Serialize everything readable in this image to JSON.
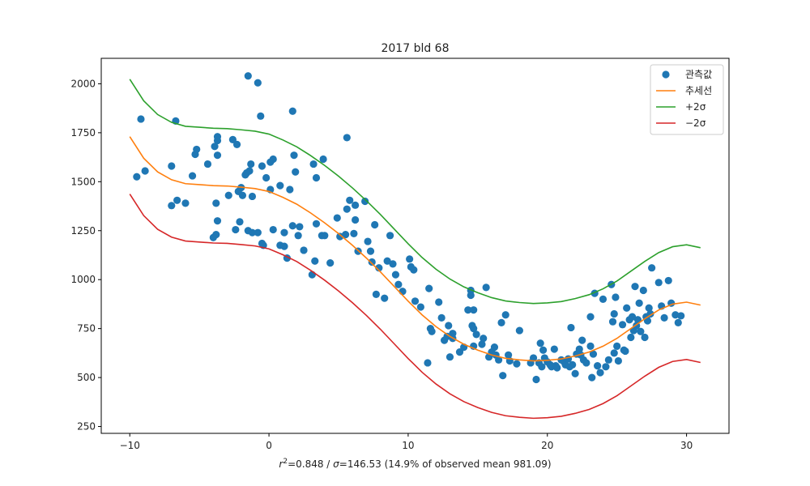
{
  "chart_data": {
    "type": "scatter",
    "title": "2017 bld 68",
    "xlabel_parts": {
      "r": "r",
      "sup": "2",
      "rest1": "=0.848 / ",
      "sigma": "σ",
      "rest2": "=146.53 (14.9% of observed mean 981.09)"
    },
    "ylabel": "",
    "xlim": [
      -12.05,
      33.05
    ],
    "ylim": [
      215,
      2130
    ],
    "xticks": [
      -10,
      0,
      10,
      20,
      30
    ],
    "xtick_labels": [
      "−10",
      "0",
      "10",
      "20",
      "30"
    ],
    "yticks": [
      250,
      500,
      750,
      1000,
      1250,
      1500,
      1750,
      2000
    ],
    "ytick_labels": [
      "250",
      "500",
      "750",
      "1000",
      "1250",
      "1500",
      "1750",
      "2000"
    ],
    "grid": false,
    "legend_position": "top-right",
    "colors": {
      "observed": "#1f77b4",
      "trend": "#ff7f0e",
      "plus2sigma": "#2ca02c",
      "minus2sigma": "#d62728"
    },
    "legend": [
      {
        "key": "observed",
        "label": "관측값",
        "marker": "dot"
      },
      {
        "key": "trend",
        "label": "추세선",
        "marker": "line"
      },
      {
        "key": "plus2sigma",
        "label": "+2σ",
        "marker": "line"
      },
      {
        "key": "minus2sigma",
        "label": "−2σ",
        "marker": "line"
      }
    ],
    "series": [
      {
        "key": "trend",
        "name": "추세선",
        "x": [
          -10,
          -9,
          -8,
          -7,
          -6,
          -5,
          -4,
          -3,
          -2,
          -1,
          0,
          1,
          2,
          3,
          4,
          5,
          6,
          7,
          8,
          9,
          10,
          11,
          12,
          13,
          14,
          15,
          16,
          17,
          18,
          19,
          20,
          21,
          22,
          23,
          24,
          25,
          26,
          27,
          28,
          29,
          30,
          31
        ],
        "y": [
          1730,
          1620,
          1550,
          1510,
          1490,
          1485,
          1480,
          1478,
          1472,
          1465,
          1450,
          1420,
          1385,
          1340,
          1290,
          1235,
          1175,
          1110,
          1040,
          965,
          890,
          820,
          760,
          710,
          670,
          640,
          615,
          598,
          590,
          585,
          588,
          595,
          610,
          630,
          660,
          700,
          750,
          800,
          845,
          875,
          885,
          870
        ]
      },
      {
        "key": "plus2sigma",
        "name": "+2σ",
        "x": [
          -10,
          -9,
          -8,
          -7,
          -6,
          -5,
          -4,
          -3,
          -2,
          -1,
          0,
          1,
          2,
          3,
          4,
          5,
          6,
          7,
          8,
          9,
          10,
          11,
          12,
          13,
          14,
          15,
          16,
          17,
          18,
          19,
          20,
          21,
          22,
          23,
          24,
          25,
          26,
          27,
          28,
          29,
          30,
          31
        ],
        "y": [
          2023,
          1913,
          1843,
          1803,
          1783,
          1778,
          1773,
          1771,
          1765,
          1758,
          1743,
          1713,
          1678,
          1633,
          1583,
          1528,
          1468,
          1403,
          1333,
          1258,
          1183,
          1113,
          1053,
          1003,
          963,
          933,
          908,
          891,
          883,
          878,
          881,
          888,
          903,
          923,
          953,
          993,
          1043,
          1093,
          1138,
          1168,
          1178,
          1163
        ]
      },
      {
        "key": "minus2sigma",
        "name": "−2σ",
        "x": [
          -10,
          -9,
          -8,
          -7,
          -6,
          -5,
          -4,
          -3,
          -2,
          -1,
          0,
          1,
          2,
          3,
          4,
          5,
          6,
          7,
          8,
          9,
          10,
          11,
          12,
          13,
          14,
          15,
          16,
          17,
          18,
          19,
          20,
          21,
          22,
          23,
          24,
          25,
          26,
          27,
          28,
          29,
          30,
          31
        ],
        "y": [
          1437,
          1327,
          1257,
          1217,
          1197,
          1192,
          1187,
          1185,
          1179,
          1172,
          1157,
          1127,
          1092,
          1047,
          997,
          942,
          882,
          817,
          747,
          672,
          597,
          527,
          467,
          417,
          377,
          347,
          322,
          305,
          297,
          292,
          295,
          302,
          317,
          337,
          367,
          407,
          457,
          507,
          552,
          582,
          592,
          577
        ]
      }
    ],
    "scatter": {
      "key": "observed",
      "name": "관측값",
      "points": [
        [
          -9.5,
          1525
        ],
        [
          -9.2,
          1820
        ],
        [
          -8.9,
          1555
        ],
        [
          -7.0,
          1580
        ],
        [
          -7.0,
          1378
        ],
        [
          -6.7,
          1810
        ],
        [
          -6.6,
          1405
        ],
        [
          -6.0,
          1390
        ],
        [
          -5.5,
          1530
        ],
        [
          -5.3,
          1640
        ],
        [
          -5.2,
          1665
        ],
        [
          -4.4,
          1590
        ],
        [
          -4.0,
          1215
        ],
        [
          -3.9,
          1680
        ],
        [
          -3.8,
          1230
        ],
        [
          -3.8,
          1390
        ],
        [
          -3.7,
          1635
        ],
        [
          -3.7,
          1710
        ],
        [
          -3.7,
          1730
        ],
        [
          -3.7,
          1300
        ],
        [
          -2.9,
          1430
        ],
        [
          -2.6,
          1715
        ],
        [
          -2.4,
          1255
        ],
        [
          -2.3,
          1690
        ],
        [
          -2.2,
          1450
        ],
        [
          -2.1,
          1295
        ],
        [
          -2.0,
          1470
        ],
        [
          -1.9,
          1430
        ],
        [
          -1.7,
          1535
        ],
        [
          -1.6,
          1545
        ],
        [
          -1.5,
          2040
        ],
        [
          -1.5,
          1250
        ],
        [
          -1.4,
          1555
        ],
        [
          -1.3,
          1590
        ],
        [
          -1.2,
          1240
        ],
        [
          -1.2,
          1425
        ],
        [
          -0.8,
          2005
        ],
        [
          -0.8,
          1240
        ],
        [
          -0.6,
          1835
        ],
        [
          -0.5,
          1580
        ],
        [
          -0.5,
          1185
        ],
        [
          -0.4,
          1175
        ],
        [
          -0.2,
          1520
        ],
        [
          0.1,
          1460
        ],
        [
          0.1,
          1600
        ],
        [
          0.3,
          1255
        ],
        [
          0.3,
          1615
        ],
        [
          0.8,
          1175
        ],
        [
          0.8,
          1480
        ],
        [
          1.1,
          1170
        ],
        [
          1.1,
          1240
        ],
        [
          1.3,
          1110
        ],
        [
          1.5,
          1460
        ],
        [
          1.7,
          1275
        ],
        [
          1.7,
          1860
        ],
        [
          1.8,
          1635
        ],
        [
          1.9,
          1550
        ],
        [
          2.1,
          1225
        ],
        [
          2.2,
          1270
        ],
        [
          2.5,
          1150
        ],
        [
          3.1,
          1025
        ],
        [
          3.2,
          1590
        ],
        [
          3.3,
          1095
        ],
        [
          3.4,
          1520
        ],
        [
          3.4,
          1285
        ],
        [
          3.8,
          1225
        ],
        [
          3.9,
          1615
        ],
        [
          4.0,
          1225
        ],
        [
          4.4,
          1085
        ],
        [
          4.9,
          1315
        ],
        [
          5.1,
          1220
        ],
        [
          5.5,
          1230
        ],
        [
          5.6,
          1725
        ],
        [
          5.6,
          1360
        ],
        [
          5.8,
          1405
        ],
        [
          6.1,
          1235
        ],
        [
          6.2,
          1305
        ],
        [
          6.2,
          1380
        ],
        [
          6.4,
          1145
        ],
        [
          6.9,
          1400
        ],
        [
          7.1,
          1195
        ],
        [
          7.3,
          1145
        ],
        [
          7.4,
          1090
        ],
        [
          7.6,
          1280
        ],
        [
          7.7,
          925
        ],
        [
          7.9,
          1060
        ],
        [
          8.3,
          905
        ],
        [
          8.5,
          1095
        ],
        [
          8.7,
          1225
        ],
        [
          8.9,
          1080
        ],
        [
          9.1,
          1025
        ],
        [
          9.3,
          975
        ],
        [
          9.6,
          940
        ],
        [
          10.1,
          1105
        ],
        [
          10.2,
          1065
        ],
        [
          10.4,
          1050
        ],
        [
          10.5,
          890
        ],
        [
          10.9,
          860
        ],
        [
          11.4,
          575
        ],
        [
          11.5,
          955
        ],
        [
          11.6,
          750
        ],
        [
          11.7,
          735
        ],
        [
          12.2,
          885
        ],
        [
          12.4,
          805
        ],
        [
          12.6,
          690
        ],
        [
          12.8,
          710
        ],
        [
          12.9,
          765
        ],
        [
          13.0,
          605
        ],
        [
          13.2,
          725
        ],
        [
          13.2,
          700
        ],
        [
          13.7,
          630
        ],
        [
          14.0,
          655
        ],
        [
          14.3,
          845
        ],
        [
          14.5,
          945
        ],
        [
          14.5,
          920
        ],
        [
          14.6,
          765
        ],
        [
          14.7,
          750
        ],
        [
          14.7,
          845
        ],
        [
          14.7,
          660
        ],
        [
          14.9,
          720
        ],
        [
          15.3,
          670
        ],
        [
          15.4,
          700
        ],
        [
          15.6,
          960
        ],
        [
          15.8,
          605
        ],
        [
          16.0,
          630
        ],
        [
          16.2,
          655
        ],
        [
          16.3,
          615
        ],
        [
          16.5,
          590
        ],
        [
          16.7,
          780
        ],
        [
          16.8,
          510
        ],
        [
          17.0,
          820
        ],
        [
          17.2,
          615
        ],
        [
          17.3,
          585
        ],
        [
          17.8,
          570
        ],
        [
          18.0,
          740
        ],
        [
          18.8,
          575
        ],
        [
          19.0,
          600
        ],
        [
          19.2,
          490
        ],
        [
          19.4,
          575
        ],
        [
          19.5,
          675
        ],
        [
          19.6,
          555
        ],
        [
          19.7,
          640
        ],
        [
          19.8,
          600
        ],
        [
          20.0,
          580
        ],
        [
          20.2,
          565
        ],
        [
          20.3,
          555
        ],
        [
          20.5,
          645
        ],
        [
          20.6,
          560
        ],
        [
          20.7,
          550
        ],
        [
          21.0,
          590
        ],
        [
          21.2,
          580
        ],
        [
          21.3,
          565
        ],
        [
          21.5,
          595
        ],
        [
          21.6,
          555
        ],
        [
          21.7,
          755
        ],
        [
          21.8,
          565
        ],
        [
          22.0,
          520
        ],
        [
          22.1,
          620
        ],
        [
          22.3,
          645
        ],
        [
          22.4,
          615
        ],
        [
          22.5,
          690
        ],
        [
          22.6,
          590
        ],
        [
          22.8,
          575
        ],
        [
          23.1,
          810
        ],
        [
          23.1,
          660
        ],
        [
          23.2,
          500
        ],
        [
          23.3,
          620
        ],
        [
          23.4,
          930
        ],
        [
          23.6,
          560
        ],
        [
          23.8,
          525
        ],
        [
          24.0,
          900
        ],
        [
          24.2,
          555
        ],
        [
          24.4,
          590
        ],
        [
          24.6,
          975
        ],
        [
          24.7,
          785
        ],
        [
          24.8,
          625
        ],
        [
          24.8,
          825
        ],
        [
          24.9,
          910
        ],
        [
          25.0,
          660
        ],
        [
          25.1,
          585
        ],
        [
          25.4,
          770
        ],
        [
          25.5,
          640
        ],
        [
          25.6,
          635
        ],
        [
          25.7,
          855
        ],
        [
          25.9,
          795
        ],
        [
          26.0,
          705
        ],
        [
          26.1,
          810
        ],
        [
          26.2,
          740
        ],
        [
          26.3,
          965
        ],
        [
          26.4,
          765
        ],
        [
          26.5,
          795
        ],
        [
          26.6,
          880
        ],
        [
          26.7,
          735
        ],
        [
          26.9,
          945
        ],
        [
          27.0,
          705
        ],
        [
          27.1,
          810
        ],
        [
          27.2,
          790
        ],
        [
          27.3,
          855
        ],
        [
          27.4,
          825
        ],
        [
          27.5,
          1060
        ],
        [
          28.0,
          985
        ],
        [
          28.2,
          865
        ],
        [
          28.4,
          805
        ],
        [
          28.7,
          995
        ],
        [
          28.9,
          880
        ],
        [
          29.2,
          820
        ],
        [
          29.4,
          780
        ],
        [
          29.6,
          815
        ]
      ]
    }
  }
}
